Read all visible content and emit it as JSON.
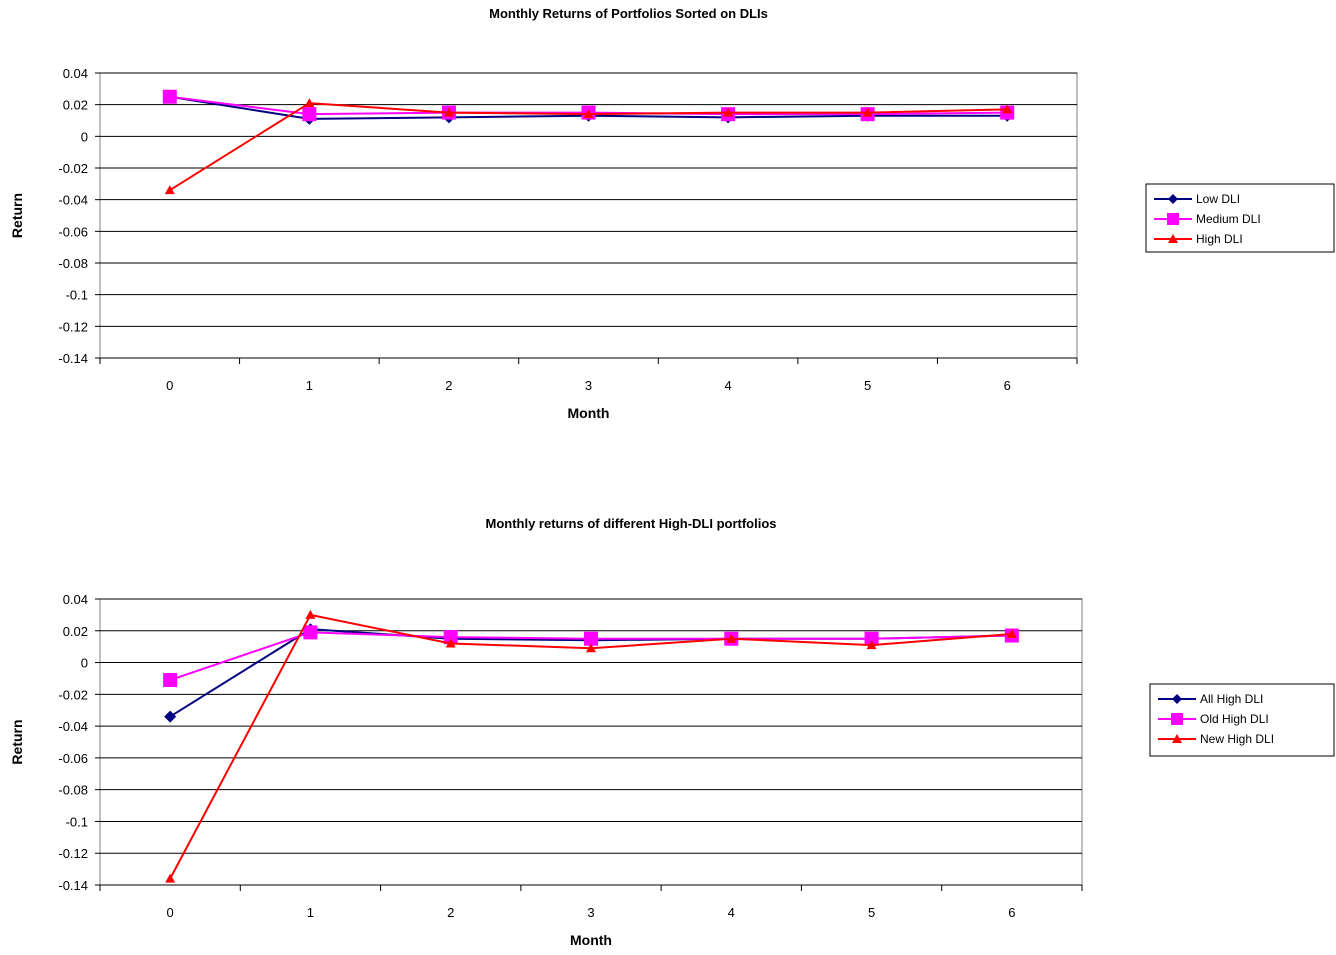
{
  "chart_data": [
    {
      "type": "line",
      "title": "Monthly Returns of Portfolios Sorted on DLIs",
      "xlabel": "Month",
      "ylabel": "Return",
      "categories": [
        "0",
        "1",
        "2",
        "3",
        "4",
        "5",
        "6"
      ],
      "ylim": [
        -0.14,
        0.04
      ],
      "yticks": [
        "0.04",
        "0.02",
        "0",
        "-0.02",
        "-0.04",
        "-0.06",
        "-0.08",
        "-0.1",
        "-0.12",
        "-0.14"
      ],
      "grid": "horizontal",
      "legend_position": "right",
      "series": [
        {
          "name": "Low DLI",
          "color": "#000080",
          "marker": "diamond",
          "values": [
            0.025,
            0.011,
            0.012,
            0.013,
            0.012,
            0.013,
            0.013
          ]
        },
        {
          "name": "Medium DLI",
          "color": "#ff00ff",
          "marker": "square",
          "values": [
            0.025,
            0.014,
            0.015,
            0.015,
            0.014,
            0.014,
            0.015
          ]
        },
        {
          "name": "High DLI",
          "color": "#ff0000",
          "marker": "triangle",
          "values": [
            -0.034,
            0.021,
            0.015,
            0.014,
            0.015,
            0.015,
            0.017
          ]
        }
      ]
    },
    {
      "type": "line",
      "title": "Monthly returns of different High-DLI portfolios",
      "xlabel": "Month",
      "ylabel": "Return",
      "categories": [
        "0",
        "1",
        "2",
        "3",
        "4",
        "5",
        "6"
      ],
      "ylim": [
        -0.14,
        0.04
      ],
      "yticks": [
        "0.04",
        "0.02",
        "0",
        "-0.02",
        "-0.04",
        "-0.06",
        "-0.08",
        "-0.1",
        "-0.12",
        "-0.14"
      ],
      "grid": "horizontal",
      "legend_position": "right",
      "series": [
        {
          "name": "All High DLI",
          "color": "#000080",
          "marker": "diamond",
          "values": [
            -0.034,
            0.021,
            0.015,
            0.014,
            0.015,
            0.015,
            0.017
          ]
        },
        {
          "name": "Old High DLI",
          "color": "#ff00ff",
          "marker": "square",
          "values": [
            -0.011,
            0.019,
            0.016,
            0.015,
            0.015,
            0.015,
            0.017
          ]
        },
        {
          "name": "New High DLI",
          "color": "#ff0000",
          "marker": "triangle",
          "values": [
            -0.136,
            0.03,
            0.012,
            0.009,
            0.015,
            0.011,
            0.018
          ]
        }
      ]
    }
  ]
}
